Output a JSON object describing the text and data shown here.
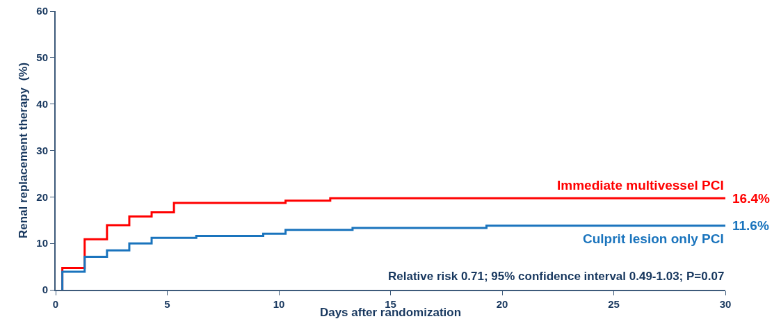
{
  "chart_data": {
    "type": "step",
    "xlabel": "Days after randomization",
    "ylabel": "Renal replacement therapy  (%)",
    "xlim": [
      0,
      30
    ],
    "xticks": [
      0,
      5,
      10,
      15,
      20,
      25,
      30
    ],
    "ylim": [
      0,
      60
    ],
    "yticks": [
      0,
      10,
      20,
      30,
      40,
      50,
      60
    ],
    "grid": false,
    "legend": false,
    "line_style": "solid",
    "marker": "none",
    "series": [
      {
        "name": "Immediate multivessel PCI",
        "color": "#ff0000",
        "x": [
          0.3,
          0.3,
          1.3,
          2.3,
          3.3,
          4.3,
          5.3,
          10.3,
          12.3,
          30
        ],
        "values": [
          0,
          4.7,
          10.9,
          13.9,
          15.8,
          16.7,
          18.7,
          19.2,
          19.7,
          19.7
        ]
      },
      {
        "name": "Culprit lesion only PCI",
        "color": "#1a74bd",
        "x": [
          0.3,
          0.3,
          1.3,
          2.3,
          3.3,
          4.3,
          6.3,
          9.3,
          10.3,
          13.3,
          19.3,
          30
        ],
        "values": [
          0,
          3.9,
          7.1,
          8.5,
          10.0,
          11.2,
          11.6,
          12.1,
          12.9,
          13.3,
          13.8,
          13.8
        ]
      }
    ],
    "annotations": [
      {
        "text": "16.4%",
        "x": 30,
        "y": 19.7
      },
      {
        "text": "11.6%",
        "x": 30,
        "y": 13.8
      },
      "Relative risk 0.71; 95% confidence interval 0.49-1.03; P=0.07"
    ]
  }
}
